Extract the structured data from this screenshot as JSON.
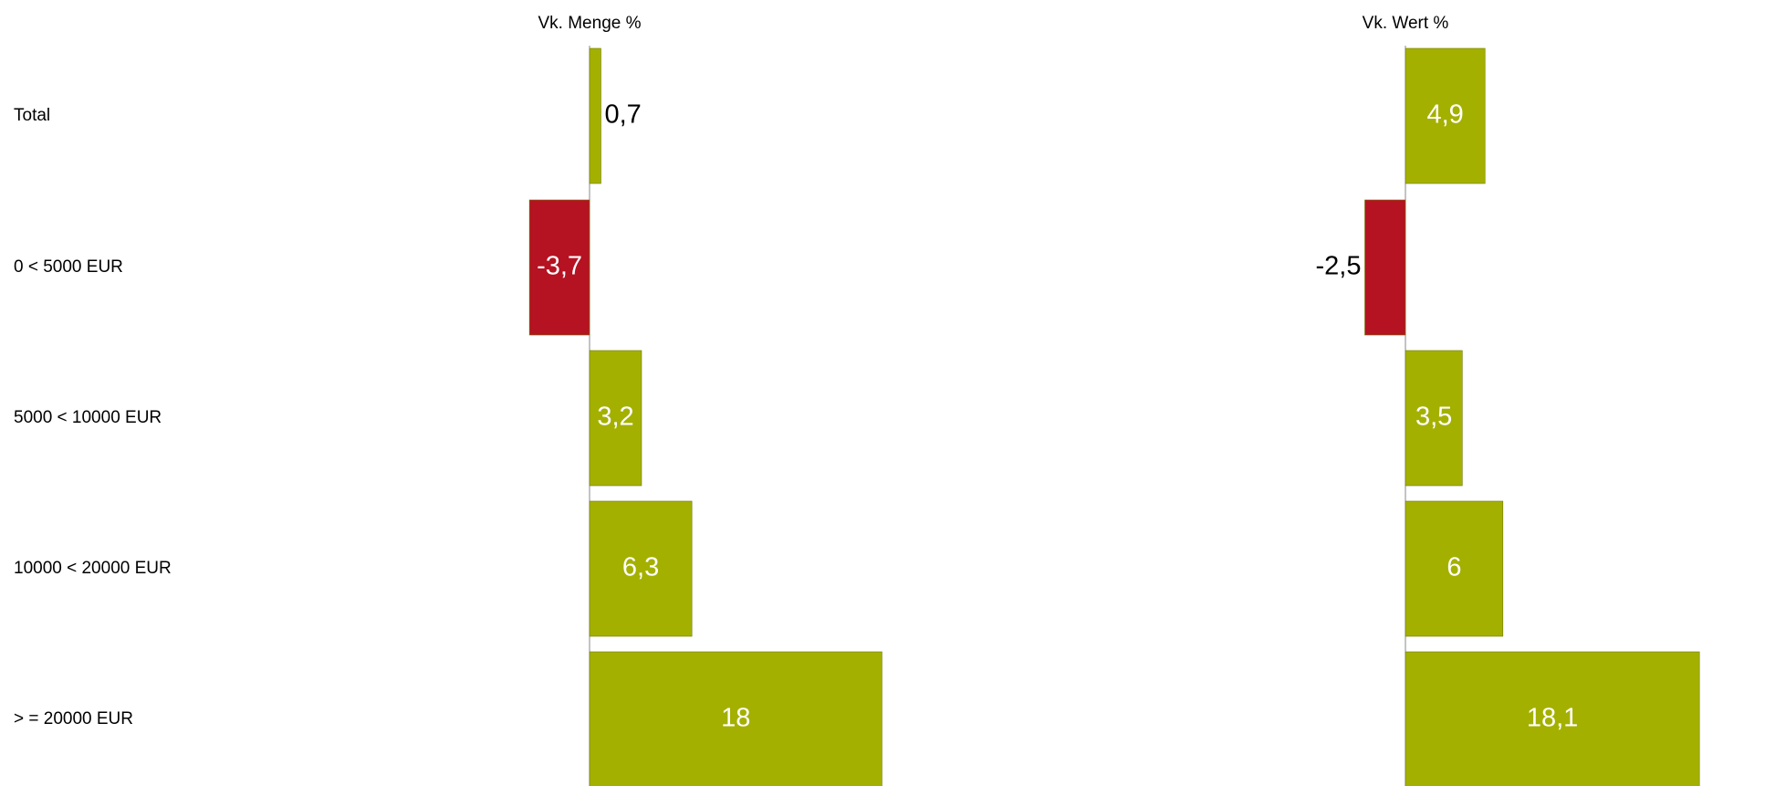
{
  "chart_data": {
    "type": "bar",
    "orientation": "horizontal",
    "categories": [
      "Total",
      "0 < 5000 EUR",
      "5000 < 10000 EUR",
      "10000 < 20000 EUR",
      "> = 20000 EUR"
    ],
    "series": [
      {
        "name": "Vk. Menge %",
        "values": [
          0.7,
          -3.7,
          3.2,
          6.3,
          18
        ],
        "labels": [
          "0,7",
          "-3,7",
          "3,2",
          "6,3",
          "18"
        ]
      },
      {
        "name": "Vk. Wert %",
        "values": [
          4.9,
          -2.5,
          3.5,
          6,
          18.1
        ],
        "labels": [
          "4,9",
          "-2,5",
          "3,5",
          "6",
          "18,1"
        ]
      }
    ],
    "colors": {
      "positive": "#a4b000",
      "negative": "#b51222",
      "axis": "#888888"
    },
    "grid": false,
    "legend": "none"
  }
}
